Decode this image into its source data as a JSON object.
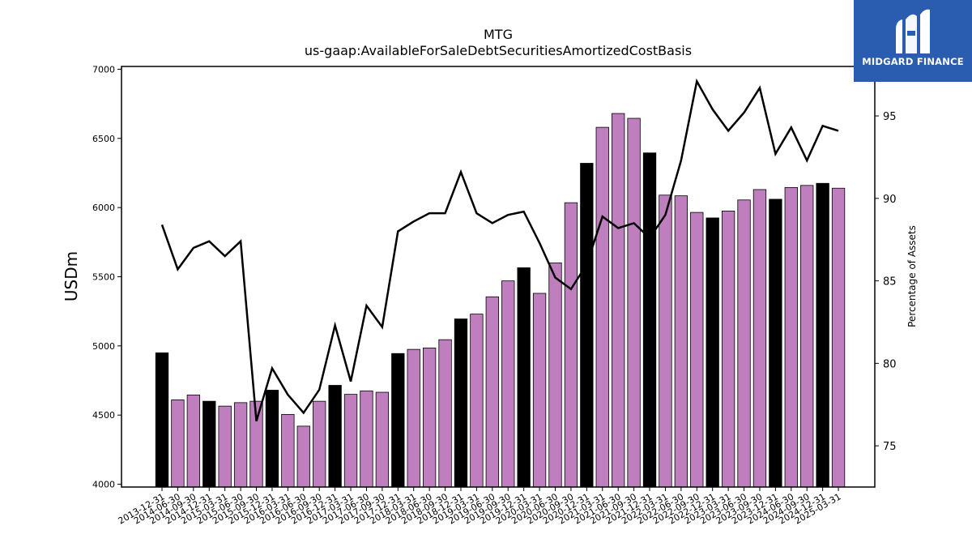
{
  "chart_data": {
    "type": "bar",
    "title": "MTG",
    "subtitle": "us-gaap:AvailableForSaleDebtSecuritiesAmortizedCostBasis",
    "ylabel": "USDm",
    "y2label": "Percentage of Assets",
    "ylim": [
      3980,
      7020
    ],
    "y2lim": [
      72.5,
      98.0
    ],
    "yticks": [
      4000,
      4500,
      5000,
      5500,
      6000,
      6500,
      7000
    ],
    "y2ticks": [
      75,
      80,
      85,
      90,
      95
    ],
    "categories": [
      "2013-12-31",
      "2014-06-30",
      "2014-09-30",
      "2014-12-31",
      "2015-03-31",
      "2015-06-30",
      "2015-09-30",
      "2015-12-31",
      "2016-03-31",
      "2016-06-30",
      "2016-09-30",
      "2016-12-31",
      "2017-03-31",
      "2017-06-30",
      "2017-09-30",
      "2017-12-31",
      "2018-03-31",
      "2018-06-30",
      "2018-09-30",
      "2018-12-31",
      "2019-03-31",
      "2019-06-30",
      "2019-09-30",
      "2019-12-31",
      "2020-03-31",
      "2020-06-30",
      "2020-09-30",
      "2020-12-31",
      "2021-03-31",
      "2021-06-30",
      "2021-09-30",
      "2021-12-31",
      "2022-03-31",
      "2022-06-30",
      "2022-09-30",
      "2022-12-31",
      "2023-03-31",
      "2023-06-30",
      "2023-09-30",
      "2023-12-31",
      "2024-06-30",
      "2024-09-30",
      "2024-12-31",
      "2025-03-31"
    ],
    "series": [
      {
        "type": "bar",
        "values": [
          4950,
          4610,
          4645,
          4600,
          4565,
          4590,
          4600,
          4680,
          4505,
          4420,
          4600,
          4715,
          4650,
          4675,
          4665,
          4945,
          4975,
          4985,
          5045,
          5195,
          5230,
          5355,
          5470,
          5565,
          5380,
          5600,
          6035,
          6320,
          6580,
          6680,
          6645,
          6395,
          6090,
          6085,
          5965,
          5925,
          5975,
          6055,
          6130,
          6060,
          6145,
          6160,
          6175,
          6140
        ],
        "year_end_color": "#000000",
        "quarter_color": "#bf7fbf"
      },
      {
        "type": "line",
        "axis": "right",
        "color": "#000000",
        "values": [
          88.4,
          85.7,
          87.0,
          87.4,
          86.5,
          87.4,
          76.5,
          79.7,
          78.1,
          77.0,
          78.4,
          82.3,
          78.9,
          83.5,
          82.2,
          88.0,
          88.6,
          89.1,
          89.1,
          91.6,
          89.1,
          88.5,
          89.0,
          89.2,
          87.3,
          85.2,
          84.5,
          86.0,
          88.9,
          88.2,
          88.5,
          87.6,
          89.0,
          92.3,
          97.1,
          95.4,
          94.1,
          95.2,
          96.7,
          92.7,
          94.3,
          92.3,
          94.4,
          94.1
        ]
      }
    ],
    "legend": "none",
    "grid": false
  },
  "logo": {
    "text": "MIDGARD FINANCE",
    "icon": "midgard-logo-icon"
  }
}
